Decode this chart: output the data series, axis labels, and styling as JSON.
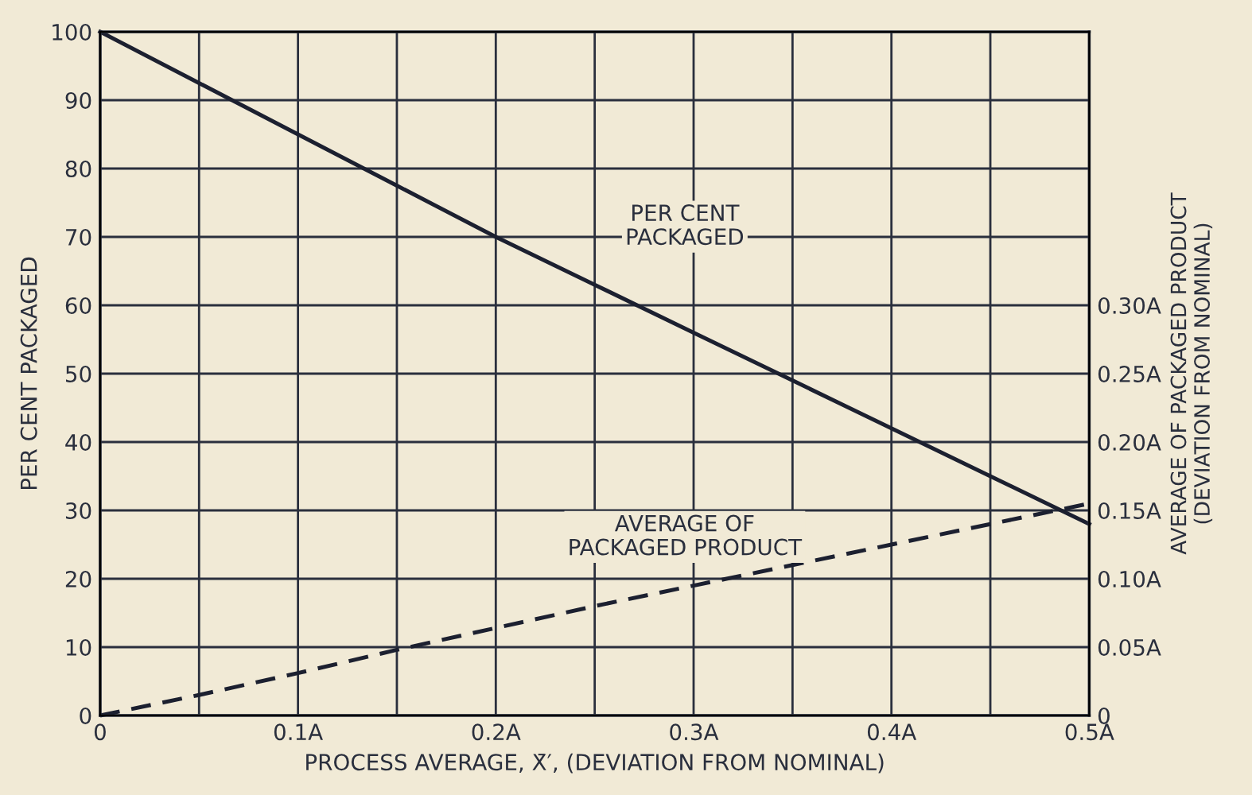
{
  "chart_data": {
    "type": "line",
    "x": [
      0,
      0.05,
      0.1,
      0.15,
      0.2,
      0.25,
      0.3,
      0.35,
      0.4,
      0.45,
      0.5
    ],
    "series": [
      {
        "name": "PER CENT\nPACKAGED",
        "color": "#1c2030",
        "line_style": "solid",
        "values": [
          100,
          92.5,
          85,
          77.5,
          70,
          63,
          56,
          49,
          42,
          35,
          28
        ]
      },
      {
        "name": "AVERAGE OF\nPACKAGED PRODUCT",
        "color": "#1c2030",
        "line_style": "dashed",
        "axis": "y2",
        "values": [
          0,
          0.015,
          0.031,
          0.048,
          0.064,
          0.08,
          0.095,
          0.11,
          0.125,
          0.14,
          0.155
        ]
      }
    ],
    "xlabel": "PROCESS AVERAGE, X̄′, (DEVIATION FROM NOMINAL)",
    "ylabel": "PER CENT PACKAGED",
    "y2label": "AVERAGE OF PACKAGED PRODUCT\n(DEVIATION FROM NOMINAL)",
    "xlim": [
      0,
      0.5
    ],
    "ylim": [
      0,
      100
    ],
    "y2lim": [
      0,
      0.5
    ],
    "xticks": [
      0,
      {
        "value": 0.05,
        "label": null
      },
      {
        "value": 0.1,
        "label": "0.1A"
      },
      {
        "value": 0.15,
        "label": null
      },
      {
        "value": 0.2,
        "label": "0.2A"
      },
      {
        "value": 0.25,
        "label": null
      },
      {
        "value": 0.3,
        "label": "0.3A"
      },
      {
        "value": 0.35,
        "label": null
      },
      {
        "value": 0.4,
        "label": "0.4A"
      },
      {
        "value": 0.45,
        "label": null
      },
      {
        "value": 0.5,
        "label": "0.5A"
      }
    ],
    "yticks": [
      0,
      10,
      20,
      30,
      40,
      50,
      60,
      70,
      80,
      90,
      100
    ],
    "y2ticks": [
      0,
      {
        "value": 0.05,
        "label": "0.05A"
      },
      {
        "value": 0.1,
        "label": "0.10A"
      },
      {
        "value": 0.15,
        "label": "0.15A"
      },
      {
        "value": 0.2,
        "label": "0.20A"
      },
      {
        "value": 0.25,
        "label": "0.25A"
      },
      {
        "value": 0.3,
        "label": "0.30A"
      }
    ],
    "grid": true,
    "marker": "none"
  }
}
